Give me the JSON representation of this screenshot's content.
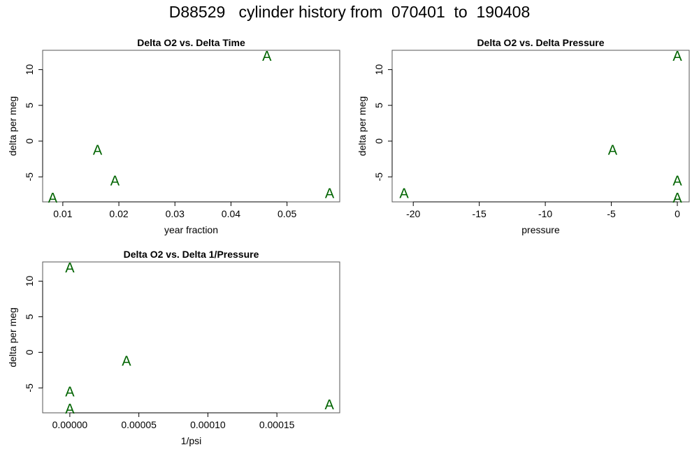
{
  "title": "D88529   cylinder history from  070401  to  190408",
  "colors": {
    "point": "#006400",
    "axis": "#000000",
    "box": "#555555"
  },
  "chart_data": [
    {
      "type": "scatter",
      "title": "Delta O2 vs. Delta Time",
      "xlabel": "year fraction",
      "ylabel": "delta per meg",
      "marker": "A",
      "xlim": [
        0.0064,
        0.0594
      ],
      "ylim": [
        -8.5,
        12.7
      ],
      "xticks": [
        0.01,
        0.02,
        0.03,
        0.04,
        0.05
      ],
      "xtick_labels": [
        "0.01",
        "0.02",
        "0.03",
        "0.04",
        "0.05"
      ],
      "yticks": [
        -5,
        0,
        5,
        10
      ],
      "ytick_labels": [
        "-5",
        "0",
        "5",
        "10"
      ],
      "points": [
        {
          "x": 0.0082,
          "y": -7.9
        },
        {
          "x": 0.0162,
          "y": -1.2
        },
        {
          "x": 0.0193,
          "y": -5.5
        },
        {
          "x": 0.0464,
          "y": 11.9
        },
        {
          "x": 0.0576,
          "y": -7.3
        }
      ]
    },
    {
      "type": "scatter",
      "title": "Delta O2 vs. Delta Pressure",
      "xlabel": "pressure",
      "ylabel": "delta per meg",
      "marker": "A",
      "xlim": [
        -21.6,
        0.9
      ],
      "ylim": [
        -8.5,
        12.7
      ],
      "xticks": [
        -20,
        -15,
        -10,
        -5,
        0
      ],
      "xtick_labels": [
        "-20",
        "-15",
        "-10",
        "-5",
        "0"
      ],
      "yticks": [
        -5,
        0,
        5,
        10
      ],
      "ytick_labels": [
        "-5",
        "0",
        "5",
        "10"
      ],
      "points": [
        {
          "x": -20.7,
          "y": -7.3
        },
        {
          "x": -4.9,
          "y": -1.2
        },
        {
          "x": 0.0,
          "y": 11.9
        },
        {
          "x": 0.0,
          "y": -5.5
        },
        {
          "x": 0.0,
          "y": -7.9
        }
      ]
    },
    {
      "type": "scatter",
      "title": "Delta O2 vs. Delta 1/Pressure",
      "xlabel": "1/psi",
      "ylabel": "delta per meg",
      "marker": "A",
      "xlim": [
        -1.97e-05,
        0.0001955
      ],
      "ylim": [
        -8.5,
        12.7
      ],
      "xticks": [
        0,
        5e-05,
        0.0001,
        0.00015
      ],
      "xtick_labels": [
        "0.00000",
        "0.00005",
        "0.00010",
        "0.00015"
      ],
      "yticks": [
        -5,
        0,
        5,
        10
      ],
      "ytick_labels": [
        "-5",
        "0",
        "5",
        "10"
      ],
      "points": [
        {
          "x": 0.0,
          "y": 11.9
        },
        {
          "x": 4.1e-05,
          "y": -1.2
        },
        {
          "x": 0.0,
          "y": -5.5
        },
        {
          "x": 0.0,
          "y": -7.9
        },
        {
          "x": 0.000188,
          "y": -7.3
        }
      ]
    }
  ]
}
